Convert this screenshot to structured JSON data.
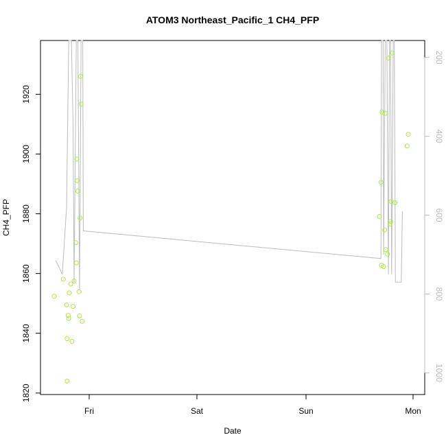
{
  "chart_data": {
    "type": "scatter",
    "title": "ATOM3 Northeast_Pacific_1 CH4_PFP",
    "xlabel": "Date",
    "ylabel": "CH4_PFP",
    "x_axis": {
      "range_days": [
        -0.37,
        2.12
      ],
      "ticks": [
        {
          "label": "Fri",
          "day": 0
        },
        {
          "label": "Sat",
          "day": 1
        },
        {
          "label": "Sun",
          "day": 2
        },
        {
          "label": "Mon",
          "day": 3
        }
      ]
    },
    "y_left": {
      "range": [
        1819.5,
        1938
      ],
      "ticks": [
        1820,
        1840,
        1860,
        1880,
        1900,
        1920
      ]
    },
    "y_right": {
      "range": [
        1055,
        157
      ],
      "ticks": [
        200,
        400,
        600,
        800,
        1000
      ],
      "color": "#bbbbbb",
      "reversed": true
    },
    "series": [
      {
        "color": "#aaee33",
        "marker": "open-circle",
        "points": [
          {
            "day": -0.325,
            "value": 1852.4
          },
          {
            "day": -0.24,
            "value": 1858.1
          },
          {
            "day": -0.21,
            "value": 1849.5
          },
          {
            "day": -0.205,
            "value": 1838.2
          },
          {
            "day": -0.205,
            "value": 1824.0
          },
          {
            "day": -0.195,
            "value": 1846.0
          },
          {
            "day": -0.19,
            "value": 1845.0
          },
          {
            "day": -0.185,
            "value": 1853.5
          },
          {
            "day": -0.17,
            "value": 1856.5
          },
          {
            "day": -0.16,
            "value": 1837.3
          },
          {
            "day": -0.15,
            "value": 1849.0
          },
          {
            "day": -0.14,
            "value": 1857.5
          },
          {
            "day": -0.125,
            "value": 1870.3
          },
          {
            "day": -0.12,
            "value": 1863.6
          },
          {
            "day": -0.115,
            "value": 1898.3
          },
          {
            "day": -0.11,
            "value": 1891.1
          },
          {
            "day": -0.105,
            "value": 1887.6
          },
          {
            "day": -0.095,
            "value": 1853.9
          },
          {
            "day": -0.09,
            "value": 1845.8
          },
          {
            "day": -0.085,
            "value": 1878.6
          },
          {
            "day": -0.08,
            "value": 1926.0
          },
          {
            "day": -0.075,
            "value": 1916.7
          },
          {
            "day": -0.065,
            "value": 1844.0
          },
          {
            "day": 2.685,
            "value": 1879.1
          },
          {
            "day": 2.7,
            "value": 1890.5
          },
          {
            "day": 2.705,
            "value": 1862.8
          },
          {
            "day": 2.71,
            "value": 1914.1
          },
          {
            "day": 2.725,
            "value": 1862.3
          },
          {
            "day": 2.735,
            "value": 1874.6
          },
          {
            "day": 2.74,
            "value": 1913.6
          },
          {
            "day": 2.745,
            "value": 1868.0
          },
          {
            "day": 2.76,
            "value": 1866.5
          },
          {
            "day": 2.77,
            "value": 1932.1
          },
          {
            "day": 2.785,
            "value": 1876.6
          },
          {
            "day": 2.79,
            "value": 1877.4
          },
          {
            "day": 2.795,
            "value": 1884.1
          },
          {
            "day": 2.805,
            "value": 1933.8
          },
          {
            "day": 2.83,
            "value": 1883.7
          },
          {
            "day": 2.945,
            "value": 1902.7
          },
          {
            "day": 2.955,
            "value": 1906.6
          }
        ]
      },
      {
        "color": "#bbbbbb",
        "marker": "line",
        "axis": "right",
        "points": [
          {
            "day": -0.31,
            "value": 715
          },
          {
            "day": -0.25,
            "value": 750
          },
          {
            "day": -0.21,
            "value": 580
          },
          {
            "day": -0.19,
            "value": 150
          },
          {
            "day": -0.165,
            "value": 150
          },
          {
            "day": -0.15,
            "value": 375
          },
          {
            "day": -0.14,
            "value": 770
          },
          {
            "day": -0.12,
            "value": 150
          },
          {
            "day": -0.105,
            "value": 150
          },
          {
            "day": -0.09,
            "value": 790
          },
          {
            "day": -0.075,
            "value": 150
          },
          {
            "day": -0.06,
            "value": 150
          },
          {
            "day": -0.055,
            "value": 640
          },
          {
            "day": 2.7,
            "value": 710
          },
          {
            "day": 2.705,
            "value": 150
          },
          {
            "day": 2.72,
            "value": 150
          },
          {
            "day": 2.725,
            "value": 700
          },
          {
            "day": 2.74,
            "value": 150
          },
          {
            "day": 2.755,
            "value": 150
          },
          {
            "day": 2.77,
            "value": 750
          },
          {
            "day": 2.78,
            "value": 150
          },
          {
            "day": 2.79,
            "value": 150
          },
          {
            "day": 2.8,
            "value": 750
          },
          {
            "day": 2.815,
            "value": 150
          },
          {
            "day": 2.825,
            "value": 150
          },
          {
            "day": 2.835,
            "value": 770
          },
          {
            "day": 2.89,
            "value": 770
          },
          {
            "day": 2.9,
            "value": 590
          }
        ]
      }
    ]
  }
}
